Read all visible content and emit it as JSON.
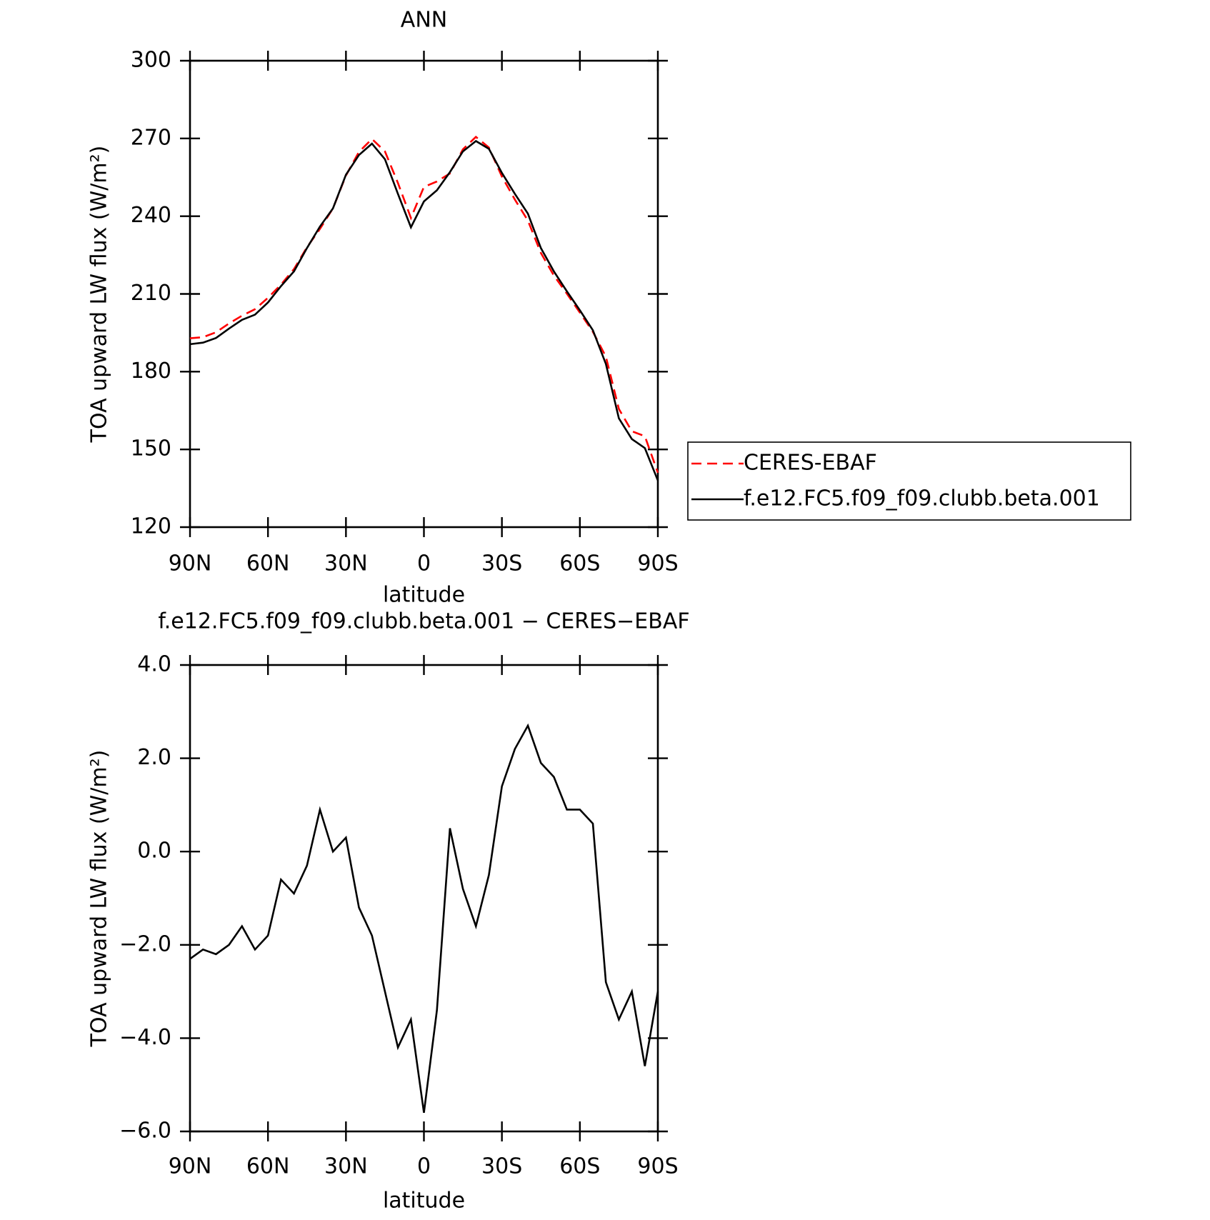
{
  "chart_data": [
    {
      "type": "line",
      "title": "ANN",
      "xlabel": "latitude",
      "ylabel": "TOA upward LW flux (W/m²)",
      "x": [
        90,
        85,
        80,
        75,
        70,
        65,
        60,
        55,
        50,
        45,
        40,
        35,
        30,
        25,
        20,
        15,
        10,
        5,
        0,
        -5,
        -10,
        -15,
        -20,
        -25,
        -30,
        -35,
        -40,
        -45,
        -50,
        -55,
        -60,
        -65,
        -70,
        -75,
        -80,
        -85,
        -90
      ],
      "series": [
        {
          "name": "CERES-EBAF",
          "color": "#ff0000",
          "linestyle": "dashed",
          "values": [
            192.9,
            193.3,
            195.2,
            198.6,
            201.6,
            204.1,
            208.5,
            213.6,
            219.6,
            228.0,
            235.1,
            243.0,
            255.7,
            264.8,
            269.8,
            265.0,
            252.8,
            239.3,
            251.3,
            253.4,
            256.5,
            265.8,
            270.6,
            266.5,
            255.3,
            246.4,
            238.3,
            225.8,
            217.1,
            210.1,
            202.8,
            195.4,
            185.8,
            165.6,
            157.0,
            155.1,
            141.0
          ]
        },
        {
          "name": "f.e12.FC5.f09_f09.clubb.beta.001",
          "color": "#000000",
          "linestyle": "solid",
          "values": [
            190.6,
            191.2,
            193.0,
            196.6,
            200.0,
            202.0,
            206.7,
            213.0,
            218.7,
            227.7,
            236.0,
            243.0,
            256.0,
            263.6,
            268.0,
            262.0,
            248.6,
            235.7,
            245.7,
            250.0,
            257.0,
            265.0,
            269.0,
            266.0,
            256.7,
            248.6,
            241.0,
            227.7,
            218.7,
            211.0,
            203.7,
            196.0,
            183.0,
            162.0,
            154.0,
            150.5,
            138.0
          ]
        }
      ],
      "xlim": [
        90,
        -90
      ],
      "xticks": [
        {
          "value": 90,
          "label": "90N"
        },
        {
          "value": 60,
          "label": "60N"
        },
        {
          "value": 30,
          "label": "30N"
        },
        0,
        {
          "value": -30,
          "label": "30S"
        },
        {
          "value": -60,
          "label": "60S"
        },
        {
          "value": -90,
          "label": "90S"
        }
      ],
      "ylim": [
        120,
        300
      ],
      "yticks": [
        120,
        150,
        180,
        210,
        240,
        270,
        300
      ],
      "legend": "outside-right"
    },
    {
      "type": "line",
      "title": "f.e12.FC5.f09_f09.clubb.beta.001 − CERES−EBAF",
      "xlabel": "latitude",
      "ylabel": "TOA upward LW flux (W/m²)",
      "x": [
        90,
        85,
        80,
        75,
        70,
        65,
        60,
        55,
        50,
        45,
        40,
        35,
        30,
        25,
        20,
        15,
        10,
        5,
        0,
        -5,
        -10,
        -15,
        -20,
        -25,
        -30,
        -35,
        -40,
        -45,
        -50,
        -55,
        -60,
        -65,
        -70,
        -75,
        -80,
        -85,
        -90
      ],
      "series": [
        {
          "color": "#000000",
          "linestyle": "solid",
          "values": [
            -2.3,
            -2.1,
            -2.2,
            -2.0,
            -1.6,
            -2.1,
            -1.8,
            -0.6,
            -0.9,
            -0.3,
            0.9,
            0.0,
            0.3,
            -1.2,
            -1.8,
            -3.0,
            -4.2,
            -3.6,
            -5.6,
            -3.4,
            0.5,
            -0.8,
            -1.6,
            -0.5,
            1.4,
            2.2,
            2.7,
            1.9,
            1.6,
            0.9,
            0.9,
            0.6,
            -2.8,
            -3.6,
            -3.0,
            -4.6,
            -3.0
          ]
        }
      ],
      "xlim": [
        90,
        -90
      ],
      "xticks": [
        {
          "value": 90,
          "label": "90N"
        },
        {
          "value": 60,
          "label": "60N"
        },
        {
          "value": 30,
          "label": "30N"
        },
        0,
        {
          "value": -30,
          "label": "30S"
        },
        {
          "value": -60,
          "label": "60S"
        },
        {
          "value": -90,
          "label": "90S"
        }
      ],
      "ylim": [
        -6,
        4
      ],
      "yticks": [
        {
          "value": -6,
          "label": "−6.0"
        },
        {
          "value": -4,
          "label": "−4.0"
        },
        {
          "value": -2,
          "label": "−2.0"
        },
        {
          "value": 0,
          "label": "0.0"
        },
        {
          "value": 2,
          "label": "2.0"
        },
        {
          "value": 4,
          "label": "4.0"
        }
      ]
    }
  ]
}
